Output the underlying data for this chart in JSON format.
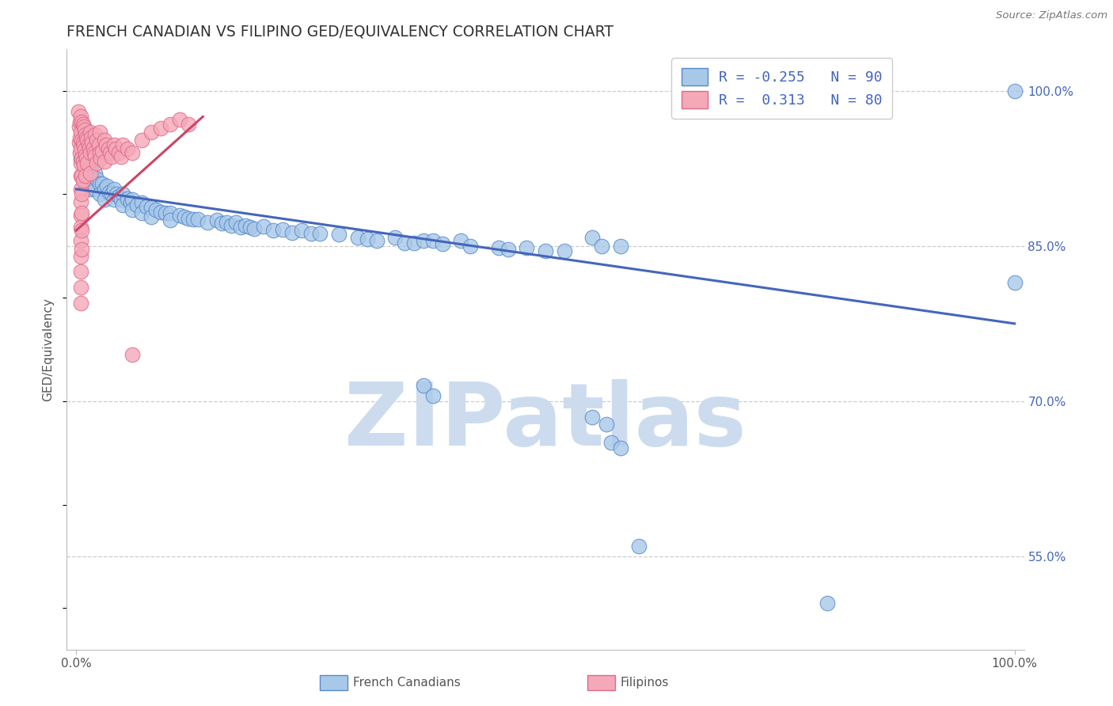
{
  "title": "FRENCH CANADIAN VS FILIPINO GED/EQUIVALENCY CORRELATION CHART",
  "source": "Source: ZipAtlas.com",
  "ylabel": "GED/Equivalency",
  "xlim": [
    -0.01,
    1.01
  ],
  "ylim": [
    0.46,
    1.04
  ],
  "ytick_vals": [
    0.55,
    0.7,
    0.85,
    1.0
  ],
  "ytick_labels": [
    "55.0%",
    "70.0%",
    "85.0%",
    "100.0%"
  ],
  "xtick_vals": [
    0.0,
    1.0
  ],
  "xtick_labels": [
    "0.0%",
    "100.0%"
  ],
  "blue_R": -0.255,
  "blue_N": 90,
  "pink_R": 0.313,
  "pink_N": 80,
  "blue_fill": "#a8c8e8",
  "blue_edge": "#5588cc",
  "pink_fill": "#f4a8b8",
  "pink_edge": "#e06888",
  "blue_line": "#4466bb",
  "pink_line": "#cc4466",
  "grid_color": "#cccccc",
  "watermark": "ZIPatlas",
  "watermark_color": "#ccdcee",
  "bg": "#ffffff",
  "title_color": "#333333",
  "title_fontsize": 13.5,
  "legend_blue": "French Canadians",
  "legend_pink": "Filipinos",
  "blue_line_x": [
    0.0,
    1.0
  ],
  "blue_line_y": [
    0.905,
    0.775
  ],
  "pink_line_x": [
    0.0,
    0.135
  ],
  "pink_line_y": [
    0.865,
    0.975
  ],
  "blue_pts": [
    [
      0.005,
      0.935
    ],
    [
      0.007,
      0.915
    ],
    [
      0.009,
      0.925
    ],
    [
      0.01,
      0.93
    ],
    [
      0.01,
      0.91
    ],
    [
      0.012,
      0.92
    ],
    [
      0.015,
      0.925
    ],
    [
      0.015,
      0.905
    ],
    [
      0.018,
      0.915
    ],
    [
      0.02,
      0.92
    ],
    [
      0.02,
      0.905
    ],
    [
      0.022,
      0.915
    ],
    [
      0.025,
      0.91
    ],
    [
      0.025,
      0.9
    ],
    [
      0.028,
      0.91
    ],
    [
      0.03,
      0.905
    ],
    [
      0.03,
      0.895
    ],
    [
      0.033,
      0.908
    ],
    [
      0.035,
      0.902
    ],
    [
      0.038,
      0.9
    ],
    [
      0.04,
      0.905
    ],
    [
      0.04,
      0.895
    ],
    [
      0.043,
      0.9
    ],
    [
      0.045,
      0.898
    ],
    [
      0.048,
      0.895
    ],
    [
      0.05,
      0.9
    ],
    [
      0.05,
      0.89
    ],
    [
      0.055,
      0.896
    ],
    [
      0.058,
      0.892
    ],
    [
      0.06,
      0.895
    ],
    [
      0.06,
      0.885
    ],
    [
      0.065,
      0.89
    ],
    [
      0.07,
      0.892
    ],
    [
      0.07,
      0.882
    ],
    [
      0.075,
      0.888
    ],
    [
      0.08,
      0.887
    ],
    [
      0.08,
      0.878
    ],
    [
      0.085,
      0.885
    ],
    [
      0.09,
      0.883
    ],
    [
      0.095,
      0.882
    ],
    [
      0.1,
      0.882
    ],
    [
      0.1,
      0.875
    ],
    [
      0.11,
      0.88
    ],
    [
      0.115,
      0.878
    ],
    [
      0.12,
      0.877
    ],
    [
      0.125,
      0.876
    ],
    [
      0.13,
      0.876
    ],
    [
      0.14,
      0.873
    ],
    [
      0.15,
      0.875
    ],
    [
      0.155,
      0.872
    ],
    [
      0.16,
      0.873
    ],
    [
      0.165,
      0.87
    ],
    [
      0.17,
      0.873
    ],
    [
      0.175,
      0.868
    ],
    [
      0.18,
      0.87
    ],
    [
      0.185,
      0.868
    ],
    [
      0.19,
      0.867
    ],
    [
      0.2,
      0.869
    ],
    [
      0.21,
      0.865
    ],
    [
      0.22,
      0.866
    ],
    [
      0.23,
      0.863
    ],
    [
      0.24,
      0.865
    ],
    [
      0.25,
      0.862
    ],
    [
      0.26,
      0.862
    ],
    [
      0.28,
      0.861
    ],
    [
      0.3,
      0.858
    ],
    [
      0.31,
      0.857
    ],
    [
      0.32,
      0.855
    ],
    [
      0.34,
      0.858
    ],
    [
      0.35,
      0.853
    ],
    [
      0.36,
      0.853
    ],
    [
      0.37,
      0.855
    ],
    [
      0.38,
      0.855
    ],
    [
      0.39,
      0.852
    ],
    [
      0.41,
      0.855
    ],
    [
      0.42,
      0.85
    ],
    [
      0.45,
      0.848
    ],
    [
      0.46,
      0.847
    ],
    [
      0.48,
      0.848
    ],
    [
      0.5,
      0.845
    ],
    [
      0.52,
      0.845
    ],
    [
      0.55,
      0.858
    ],
    [
      0.56,
      0.85
    ],
    [
      0.58,
      0.85
    ],
    [
      0.37,
      0.715
    ],
    [
      0.38,
      0.705
    ],
    [
      0.55,
      0.685
    ],
    [
      0.565,
      0.678
    ],
    [
      0.57,
      0.66
    ],
    [
      0.58,
      0.655
    ],
    [
      0.6,
      0.56
    ],
    [
      0.8,
      0.505
    ],
    [
      1.0,
      1.0
    ],
    [
      1.0,
      0.815
    ]
  ],
  "pink_pts": [
    [
      0.002,
      0.98
    ],
    [
      0.003,
      0.965
    ],
    [
      0.003,
      0.95
    ],
    [
      0.004,
      0.97
    ],
    [
      0.004,
      0.955
    ],
    [
      0.004,
      0.94
    ],
    [
      0.005,
      0.975
    ],
    [
      0.005,
      0.96
    ],
    [
      0.005,
      0.945
    ],
    [
      0.005,
      0.93
    ],
    [
      0.005,
      0.918
    ],
    [
      0.005,
      0.905
    ],
    [
      0.005,
      0.893
    ],
    [
      0.005,
      0.88
    ],
    [
      0.005,
      0.868
    ],
    [
      0.005,
      0.855
    ],
    [
      0.005,
      0.84
    ],
    [
      0.005,
      0.825
    ],
    [
      0.005,
      0.81
    ],
    [
      0.005,
      0.795
    ],
    [
      0.006,
      0.97
    ],
    [
      0.006,
      0.952
    ],
    [
      0.006,
      0.935
    ],
    [
      0.006,
      0.918
    ],
    [
      0.006,
      0.9
    ],
    [
      0.006,
      0.882
    ],
    [
      0.006,
      0.865
    ],
    [
      0.006,
      0.847
    ],
    [
      0.007,
      0.968
    ],
    [
      0.007,
      0.95
    ],
    [
      0.007,
      0.932
    ],
    [
      0.007,
      0.913
    ],
    [
      0.008,
      0.965
    ],
    [
      0.008,
      0.947
    ],
    [
      0.008,
      0.928
    ],
    [
      0.009,
      0.962
    ],
    [
      0.009,
      0.943
    ],
    [
      0.01,
      0.958
    ],
    [
      0.01,
      0.938
    ],
    [
      0.01,
      0.918
    ],
    [
      0.011,
      0.955
    ],
    [
      0.011,
      0.935
    ],
    [
      0.012,
      0.952
    ],
    [
      0.012,
      0.93
    ],
    [
      0.013,
      0.948
    ],
    [
      0.014,
      0.945
    ],
    [
      0.015,
      0.96
    ],
    [
      0.015,
      0.94
    ],
    [
      0.015,
      0.92
    ],
    [
      0.016,
      0.955
    ],
    [
      0.017,
      0.95
    ],
    [
      0.018,
      0.945
    ],
    [
      0.019,
      0.94
    ],
    [
      0.02,
      0.958
    ],
    [
      0.02,
      0.937
    ],
    [
      0.022,
      0.952
    ],
    [
      0.022,
      0.93
    ],
    [
      0.024,
      0.948
    ],
    [
      0.025,
      0.96
    ],
    [
      0.025,
      0.94
    ],
    [
      0.026,
      0.935
    ],
    [
      0.028,
      0.942
    ],
    [
      0.03,
      0.952
    ],
    [
      0.03,
      0.932
    ],
    [
      0.032,
      0.948
    ],
    [
      0.034,
      0.944
    ],
    [
      0.036,
      0.94
    ],
    [
      0.038,
      0.936
    ],
    [
      0.04,
      0.948
    ],
    [
      0.042,
      0.944
    ],
    [
      0.045,
      0.94
    ],
    [
      0.048,
      0.936
    ],
    [
      0.05,
      0.948
    ],
    [
      0.055,
      0.944
    ],
    [
      0.06,
      0.94
    ],
    [
      0.07,
      0.952
    ],
    [
      0.08,
      0.96
    ],
    [
      0.09,
      0.964
    ],
    [
      0.1,
      0.968
    ],
    [
      0.11,
      0.972
    ],
    [
      0.12,
      0.968
    ],
    [
      0.06,
      0.745
    ]
  ]
}
